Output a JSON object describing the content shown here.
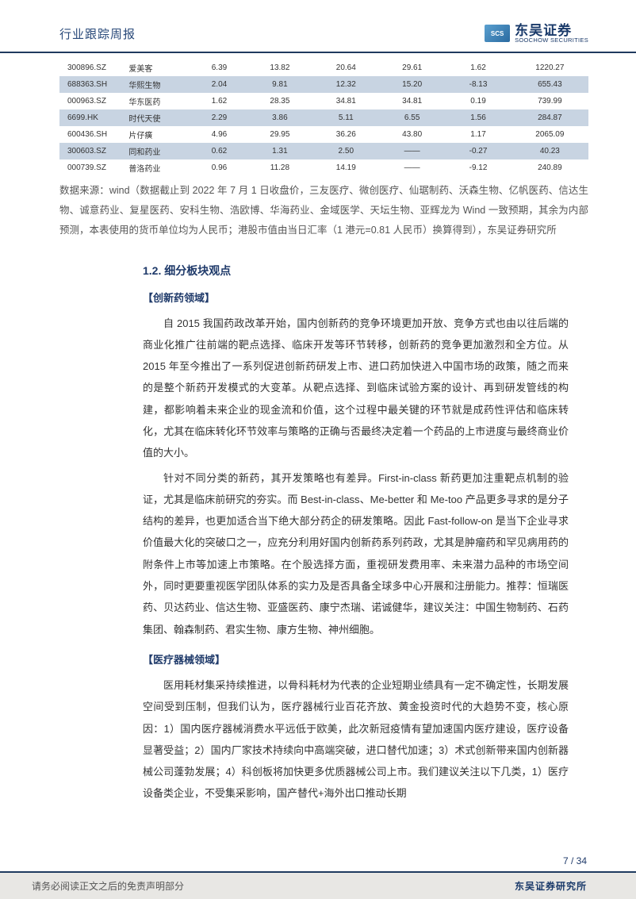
{
  "header": {
    "title": "行业跟踪周报",
    "logo_cn": "东吴证券",
    "logo_en": "SOOCHOW SECURITIES",
    "logo_badge": "SCS"
  },
  "table": {
    "rows": [
      {
        "code": "300896.SZ",
        "name": "爱美客",
        "c3": "6.39",
        "c4": "13.82",
        "c5": "20.64",
        "c6": "29.61",
        "c7": "1.62",
        "c8": "1220.27",
        "alt": false
      },
      {
        "code": "688363.SH",
        "name": "华熙生物",
        "c3": "2.04",
        "c4": "9.81",
        "c5": "12.32",
        "c6": "15.20",
        "c7": "-8.13",
        "c8": "655.43",
        "alt": true
      },
      {
        "code": "000963.SZ",
        "name": "华东医药",
        "c3": "1.62",
        "c4": "28.35",
        "c5": "34.81",
        "c6": "34.81",
        "c7": "0.19",
        "c8": "739.99",
        "alt": false
      },
      {
        "code": "6699.HK",
        "name": "时代天使",
        "c3": "2.29",
        "c4": "3.86",
        "c5": "5.11",
        "c6": "6.55",
        "c7": "1.56",
        "c8": "284.87",
        "alt": true
      },
      {
        "code": "600436.SH",
        "name": "片仔癀",
        "c3": "4.96",
        "c4": "29.95",
        "c5": "36.26",
        "c6": "43.80",
        "c7": "1.17",
        "c8": "2065.09",
        "alt": false
      },
      {
        "code": "300603.SZ",
        "name": "同和药业",
        "c3": "0.62",
        "c4": "1.31",
        "c5": "2.50",
        "c6": "——",
        "c7": "-0.27",
        "c8": "40.23",
        "alt": true
      },
      {
        "code": "000739.SZ",
        "name": "普洛药业",
        "c3": "0.96",
        "c4": "11.28",
        "c5": "14.19",
        "c6": "——",
        "c7": "-9.12",
        "c8": "240.89",
        "alt": false
      }
    ],
    "background_color": "#ffffff",
    "alt_row_color": "#c8d4e2"
  },
  "source_note": "数据来源：wind（数据截止到 2022 年 7 月 1 日收盘价，三友医疗、微创医疗、仙琚制药、沃森生物、亿帆医药、信达生物、诚意药业、复星医药、安科生物、浩欧博、华海药业、金域医学、天坛生物、亚辉龙为 Wind 一致预期，其余为内部预测，本表使用的货币单位均为人民币；港股市值由当日汇率（1 港元=0.81 人民币）换算得到），东吴证券研究所",
  "sections": {
    "heading": "1.2. 细分板块观点",
    "sub1": "【创新药领域】",
    "p1": "自 2015 我国药政改革开始，国内创新药的竞争环境更加开放、竞争方式也由以往后端的商业化推广往前端的靶点选择、临床开发等环节转移，创新药的竞争更加激烈和全方位。从 2015 年至今推出了一系列促进创新药研发上市、进口药加快进入中国市场的政策，随之而来的是整个新药开发模式的大变革。从靶点选择、到临床试验方案的设计、再到研发管线的构建，都影响着未来企业的现金流和价值，这个过程中最关键的环节就是成药性评估和临床转化，尤其在临床转化环节效率与策略的正确与否最终决定着一个药品的上市进度与最终商业价值的大小。",
    "p2": "针对不同分类的新药，其开发策略也有差异。First-in-class 新药更加注重靶点机制的验证，尤其是临床前研究的夯实。而 Best-in-class、Me-better 和 Me-too 产品更多寻求的是分子结构的差异，也更加适合当下绝大部分药企的研发策略。因此 Fast-follow-on 是当下企业寻求价值最大化的突破口之一，应充分利用好国内创新药系列药政，尤其是肿瘤药和罕见病用药的附条件上市等加速上市策略。在个股选择方面，重视研发费用率、未来潜力品种的市场空间外，同时更要重视医学团队体系的实力及是否具备全球多中心开展和注册能力。推荐：恒瑞医药、贝达药业、信达生物、亚盛医药、康宁杰瑞、诺诚健华，建议关注：中国生物制药、石药集团、翰森制药、君实生物、康方生物、神州细胞。",
    "sub2": "【医疗器械领域】",
    "p3": "医用耗材集采持续推进，以骨科耗材为代表的企业短期业绩具有一定不确定性，长期发展空间受到压制，但我们认为，医疗器械行业百花齐放、黄金投资时代的大趋势不变，核心原因：1）国内医疗器械消费水平远低于欧美，此次新冠疫情有望加速国内医疗建设，医疗设备显著受益；2）国内厂家技术持续向中高端突破，进口替代加速；3）术式创新带来国内创新器械公司蓬勃发展；4）科创板将加快更多优质器械公司上市。我们建议关注以下几类，1）医疗设备类企业，不受集采影响，国产替代+海外出口推动长期"
  },
  "footer": {
    "page": "7 / 34",
    "left": "请务必阅读正文之后的免责声明部分",
    "right": "东吴证券研究所"
  }
}
